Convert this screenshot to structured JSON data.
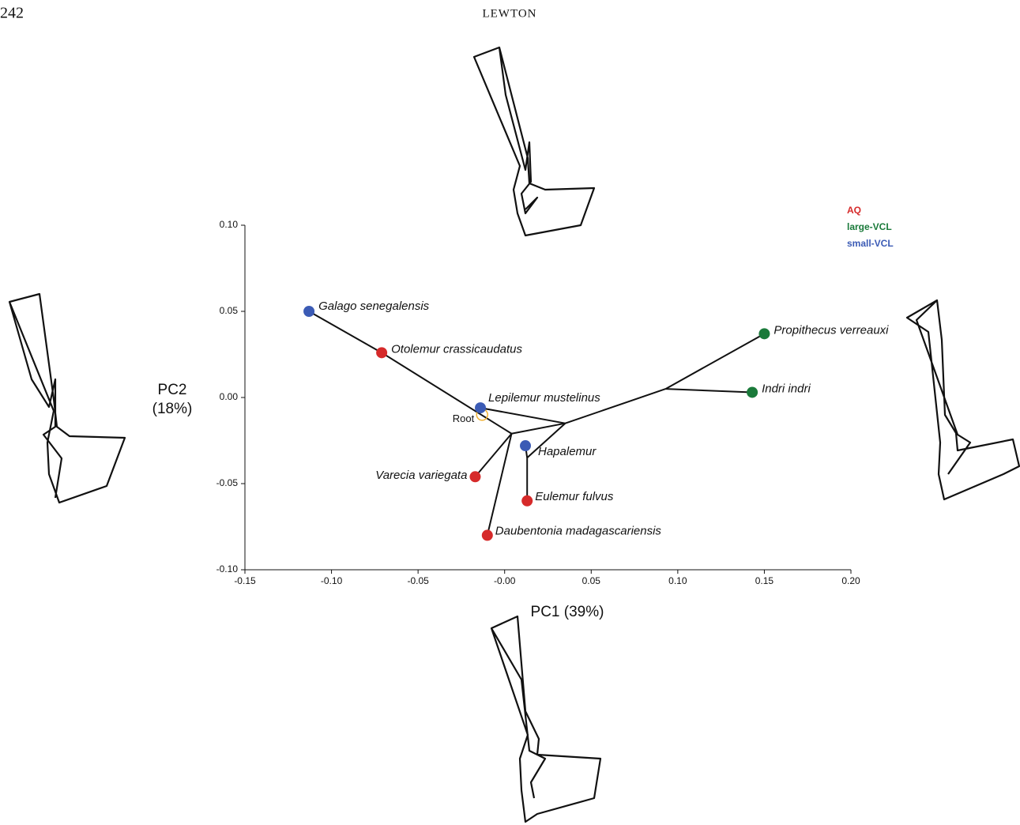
{
  "header": {
    "page": "242",
    "running_head": "LEWTON"
  },
  "chart_data": {
    "type": "scatter",
    "xlabel": "PC1 (39%)",
    "ylabel_lines": [
      "PC2",
      "(18%)"
    ],
    "xlim": [
      -0.15,
      0.2
    ],
    "ylim": [
      -0.1,
      0.1
    ],
    "xticks": [
      {
        "value": -0.15,
        "label": "-0.15"
      },
      {
        "value": -0.1,
        "label": "-0.10"
      },
      {
        "value": -0.05,
        "label": "-0.05"
      },
      {
        "value": 0,
        "label": "-0.00"
      },
      {
        "value": 0.05,
        "label": "0.05"
      },
      {
        "value": 0.1,
        "label": "0.10"
      },
      {
        "value": 0.15,
        "label": "0.15"
      },
      {
        "value": 0.2,
        "label": "0.20"
      }
    ],
    "yticks": [
      {
        "value": 0.1,
        "label": "0.10"
      },
      {
        "value": 0.05,
        "label": "0.05"
      },
      {
        "value": 0,
        "label": "0.00"
      },
      {
        "value": -0.05,
        "label": "-0.05"
      },
      {
        "value": -0.1,
        "label": "-0.10"
      }
    ],
    "series": [
      {
        "name": "AQ",
        "color": "#d62a2a",
        "labels": [
          "Otolemur crassicaudatus",
          "Varecia variegata",
          "Eulemur fulvus",
          "Daubentonia madagascariensis"
        ],
        "x": [
          -0.071,
          -0.017,
          0.013,
          -0.01
        ],
        "y": [
          0.026,
          -0.046,
          -0.06,
          -0.08
        ]
      },
      {
        "name": "large-VCL",
        "color": "#1a7a3a",
        "labels": [
          "Propithecus verreauxi",
          "Indri indri"
        ],
        "x": [
          0.15,
          0.143
        ],
        "y": [
          0.037,
          0.003
        ]
      },
      {
        "name": "small-VCL",
        "color": "#3b5bb5",
        "labels": [
          "Galago senegalensis",
          "Lepilemur mustelinus",
          "Hapalemur"
        ],
        "x": [
          -0.113,
          -0.014,
          0.012
        ],
        "y": [
          0.05,
          -0.006,
          -0.028
        ]
      }
    ],
    "root": {
      "label": "Root",
      "x": -0.013,
      "y": -0.01,
      "color": "#f0b030"
    },
    "edges": [
      [
        -0.113,
        0.05,
        -0.071,
        0.026
      ],
      [
        -0.071,
        0.026,
        0.004,
        -0.021
      ],
      [
        -0.014,
        -0.006,
        0.035,
        -0.015
      ],
      [
        0.004,
        -0.021,
        0.035,
        -0.015
      ],
      [
        0.004,
        -0.021,
        -0.017,
        -0.046
      ],
      [
        0.004,
        -0.021,
        -0.01,
        -0.08
      ],
      [
        0.035,
        -0.015,
        0.013,
        -0.035
      ],
      [
        0.013,
        -0.035,
        0.012,
        -0.028
      ],
      [
        0.013,
        -0.035,
        0.013,
        -0.06
      ],
      [
        0.035,
        -0.015,
        0.093,
        0.005
      ],
      [
        0.093,
        0.005,
        0.15,
        0.037
      ],
      [
        0.093,
        0.005,
        0.143,
        0.003
      ]
    ]
  }
}
